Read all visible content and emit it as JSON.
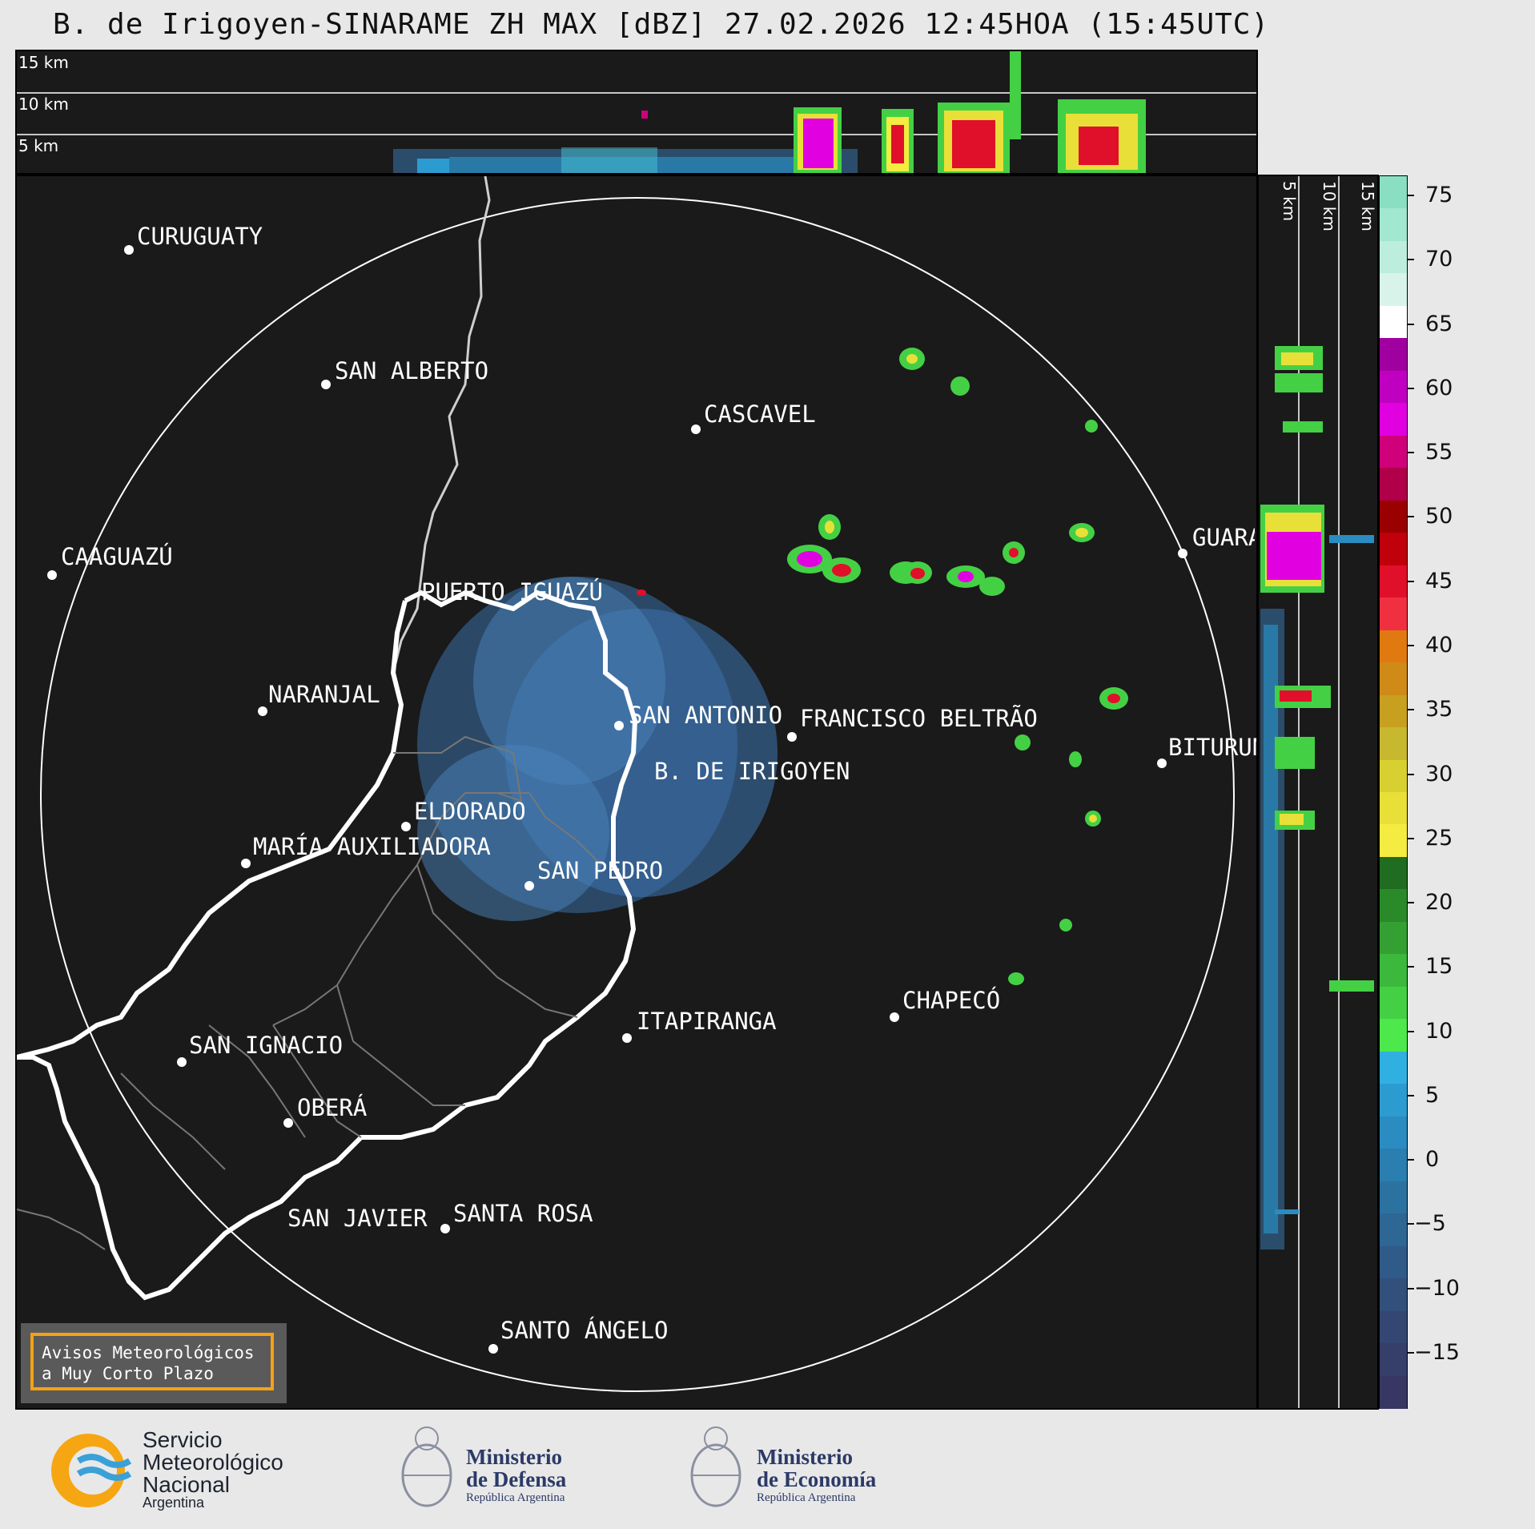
{
  "title": "B. de Irigoyen-SINARAME ZH MAX [dBZ] 27.02.2026 12:45HOA (15:45UTC)",
  "height_labels": {
    "km15": "15 km",
    "km10": "10 km",
    "km5": "5 km"
  },
  "cities": [
    {
      "name": "CURUGUATY"
    },
    {
      "name": "SAN ALBERTO"
    },
    {
      "name": "CASCAVEL"
    },
    {
      "name": "CAAGUAZÚ"
    },
    {
      "name": "GUARAPUAVA"
    },
    {
      "name": "PUERTO IGUAZÚ"
    },
    {
      "name": "NARANJAL"
    },
    {
      "name": "SAN ANTONIO"
    },
    {
      "name": "FRANCISCO BELTRÃO"
    },
    {
      "name": "BITURUNA"
    },
    {
      "name": "B. DE IRIGOYEN"
    },
    {
      "name": "ELDORADO"
    },
    {
      "name": "MARÍA AUXILIADORA"
    },
    {
      "name": "SAN PEDRO"
    },
    {
      "name": "CHAPECÓ"
    },
    {
      "name": "ITAPIRANGA"
    },
    {
      "name": "SAN IGNACIO"
    },
    {
      "name": "OBERÁ"
    },
    {
      "name": "SAN JAVIER"
    },
    {
      "name": "SANTA ROSA"
    },
    {
      "name": "SANTO ÁNGELO"
    }
  ],
  "colorbar": {
    "ticks": [
      "75",
      "70",
      "65",
      "60",
      "55",
      "50",
      "45",
      "40",
      "35",
      "30",
      "25",
      "20",
      "15",
      "10",
      "5",
      "0",
      "−5",
      "−10",
      "−15"
    ],
    "colors": [
      "#8adfc2",
      "#a2e7cf",
      "#bdeedd",
      "#d8f4ea",
      "#ffffff",
      "#a000a0",
      "#c000c0",
      "#e000e0",
      "#d0007a",
      "#b0004a",
      "#9a0000",
      "#c0000a",
      "#e0102a",
      "#f03040",
      "#e07a10",
      "#d08a18",
      "#c8a020",
      "#c8b830",
      "#d8d030",
      "#e8e038",
      "#f4ec40",
      "#206c20",
      "#2a8a2a",
      "#34a034",
      "#3cb83c",
      "#44d044",
      "#4ce84c",
      "#30b0e0",
      "#2c9cd0",
      "#2a8cc0",
      "#2a7eb0",
      "#2c72a0",
      "#2e6694",
      "#305a88",
      "#32507c",
      "#344672",
      "#363e6a",
      "#383662"
    ],
    "units": "dBZ"
  },
  "avisos": {
    "line1": "Avisos Meteorológicos",
    "line2": "a Muy Corto Plazo"
  },
  "logos": {
    "smn": {
      "line1": "Servicio",
      "line2": "Meteorológico",
      "line3": "Nacional",
      "line4": "Argentina"
    },
    "defensa": {
      "line1": "Ministerio",
      "line2": "de Defensa",
      "line3": "República Argentina"
    },
    "economia": {
      "line1": "Ministerio",
      "line2": "de Economía",
      "line3": "República Argentina"
    }
  }
}
